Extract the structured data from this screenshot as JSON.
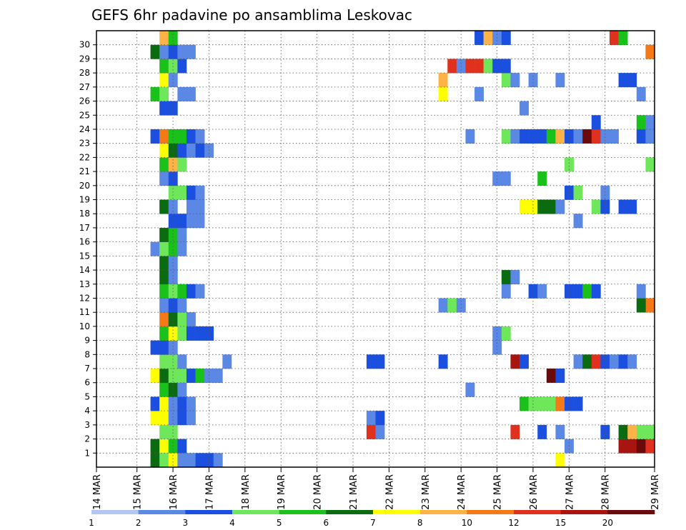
{
  "chart_data": {
    "type": "heatmap",
    "title": "GEFS 6hr padavine po ansamblima Leskovac",
    "x_tick_labels": [
      "14 MAR",
      "15 MAR",
      "16 MAR",
      "17 MAR",
      "18 MAR",
      "19 MAR",
      "20 MAR",
      "21 MAR",
      "22 MAR",
      "23 MAR",
      "24 MAR",
      "25 MAR",
      "26 MAR",
      "27 MAR",
      "28 MAR",
      "29 MAR"
    ],
    "y_tick_labels": [
      "1",
      "2",
      "3",
      "4",
      "5",
      "6",
      "7",
      "8",
      "9",
      "10",
      "11",
      "12",
      "13",
      "14",
      "15",
      "16",
      "17",
      "18",
      "19",
      "20",
      "21",
      "22",
      "23",
      "24",
      "25",
      "26",
      "27",
      "28",
      "29",
      "30"
    ],
    "y_range": [
      0,
      30
    ],
    "x_range_steps": [
      0,
      60
    ],
    "steps_per_day": 4,
    "grid": true,
    "colorbar": {
      "position": "bottom",
      "labels": [
        "1",
        "2",
        "3",
        "4",
        "5",
        "6",
        "7",
        "8",
        "10",
        "12",
        "15",
        "20"
      ],
      "colors": [
        "#b3c6f2",
        "#5b87e5",
        "#1b4fe0",
        "#6ee85a",
        "#19c11a",
        "#0a6b10",
        "#ffff00",
        "#ffb347",
        "#f57a17",
        "#e0301e",
        "#a8140f",
        "#6b0a0a"
      ]
    },
    "cells": [
      [
        6,
        1,
        5
      ],
      [
        7,
        1,
        6
      ],
      [
        8,
        1,
        4
      ],
      [
        9,
        1,
        2
      ],
      [
        7,
        2,
        3
      ],
      [
        8,
        2,
        3
      ],
      [
        6,
        3,
        6
      ],
      [
        7,
        3,
        6
      ],
      [
        8,
        3,
        1
      ],
      [
        9,
        3,
        2
      ],
      [
        10,
        3,
        1
      ],
      [
        6,
        4,
        2
      ],
      [
        7,
        4,
        6
      ],
      [
        8,
        4,
        1
      ],
      [
        9,
        4,
        2
      ],
      [
        10,
        4,
        1
      ],
      [
        7,
        5,
        4
      ],
      [
        8,
        5,
        5
      ],
      [
        9,
        5,
        1
      ],
      [
        6,
        6,
        6
      ],
      [
        7,
        6,
        5
      ],
      [
        8,
        6,
        3
      ],
      [
        9,
        6,
        3
      ],
      [
        10,
        6,
        2
      ],
      [
        11,
        6,
        4
      ],
      [
        12,
        6,
        1
      ],
      [
        13,
        6,
        1
      ],
      [
        7,
        7,
        3
      ],
      [
        8,
        7,
        3
      ],
      [
        9,
        7,
        1
      ],
      [
        14,
        7,
        1
      ],
      [
        6,
        8,
        2
      ],
      [
        7,
        8,
        2
      ],
      [
        8,
        8,
        1
      ],
      [
        7,
        9,
        4
      ],
      [
        8,
        9,
        6
      ],
      [
        9,
        9,
        3
      ],
      [
        10,
        9,
        2
      ],
      [
        11,
        9,
        2
      ],
      [
        12,
        9,
        2
      ],
      [
        7,
        10,
        8
      ],
      [
        8,
        10,
        5
      ],
      [
        9,
        10,
        3
      ],
      [
        10,
        10,
        1
      ],
      [
        7,
        11,
        1
      ],
      [
        8,
        11,
        2
      ],
      [
        9,
        11,
        1
      ],
      [
        7,
        12,
        4
      ],
      [
        8,
        12,
        3
      ],
      [
        9,
        12,
        4
      ],
      [
        10,
        12,
        2
      ],
      [
        11,
        12,
        1
      ],
      [
        7,
        13,
        5
      ],
      [
        8,
        13,
        1
      ],
      [
        7,
        14,
        5
      ],
      [
        8,
        14,
        1
      ],
      [
        6,
        15,
        1
      ],
      [
        7,
        15,
        3
      ],
      [
        8,
        15,
        4
      ],
      [
        9,
        15,
        1
      ],
      [
        7,
        16,
        5
      ],
      [
        8,
        16,
        4
      ],
      [
        9,
        16,
        1
      ],
      [
        8,
        17,
        2
      ],
      [
        9,
        17,
        2
      ],
      [
        10,
        17,
        1
      ],
      [
        11,
        17,
        1
      ],
      [
        7,
        18,
        5
      ],
      [
        8,
        18,
        1
      ],
      [
        10,
        18,
        1
      ],
      [
        11,
        18,
        1
      ],
      [
        8,
        19,
        3
      ],
      [
        9,
        19,
        3
      ],
      [
        10,
        19,
        2
      ],
      [
        11,
        19,
        1
      ],
      [
        7,
        20,
        1
      ],
      [
        8,
        20,
        2
      ],
      [
        7,
        21,
        4
      ],
      [
        8,
        21,
        7
      ],
      [
        9,
        21,
        3
      ],
      [
        7,
        22,
        6
      ],
      [
        8,
        22,
        5
      ],
      [
        9,
        22,
        2
      ],
      [
        10,
        22,
        1
      ],
      [
        11,
        22,
        2
      ],
      [
        12,
        22,
        1
      ],
      [
        6,
        23,
        2
      ],
      [
        7,
        23,
        8
      ],
      [
        8,
        23,
        4
      ],
      [
        9,
        23,
        4
      ],
      [
        10,
        23,
        2
      ],
      [
        11,
        23,
        1
      ],
      [
        7,
        25,
        2
      ],
      [
        8,
        25,
        2
      ],
      [
        6,
        26,
        4
      ],
      [
        7,
        26,
        3
      ],
      [
        9,
        26,
        1
      ],
      [
        10,
        26,
        1
      ],
      [
        7,
        27,
        6
      ],
      [
        8,
        27,
        1
      ],
      [
        7,
        28,
        4
      ],
      [
        8,
        28,
        3
      ],
      [
        9,
        28,
        2
      ],
      [
        6,
        29,
        5
      ],
      [
        7,
        29,
        1
      ],
      [
        8,
        29,
        2
      ],
      [
        9,
        29,
        1
      ],
      [
        10,
        29,
        1
      ],
      [
        7,
        30,
        7
      ],
      [
        8,
        30,
        4
      ],
      [
        6,
        0,
        5
      ],
      [
        7,
        0,
        3
      ],
      [
        8,
        0,
        6
      ],
      [
        9,
        0,
        1
      ],
      [
        10,
        0,
        1
      ],
      [
        11,
        0,
        2
      ],
      [
        12,
        0,
        2
      ],
      [
        13,
        0,
        1
      ],
      [
        30,
        2,
        9
      ],
      [
        31,
        2,
        1
      ],
      [
        30,
        3,
        1
      ],
      [
        31,
        3,
        2
      ],
      [
        30,
        7,
        2
      ],
      [
        31,
        7,
        2
      ],
      [
        38,
        7,
        2
      ],
      [
        38,
        11,
        1
      ],
      [
        39,
        11,
        3
      ],
      [
        40,
        11,
        1
      ],
      [
        38,
        26,
        6
      ],
      [
        38,
        27,
        7
      ],
      [
        39,
        28,
        9
      ],
      [
        40,
        28,
        1
      ],
      [
        41,
        28,
        9
      ],
      [
        42,
        28,
        9
      ],
      [
        43,
        28,
        3
      ],
      [
        44,
        28,
        2
      ],
      [
        41,
        5,
        1
      ],
      [
        41,
        23,
        1
      ],
      [
        42,
        26,
        1
      ],
      [
        42,
        30,
        2
      ],
      [
        43,
        30,
        7
      ],
      [
        44,
        30,
        1
      ],
      [
        45,
        30,
        2
      ],
      [
        44,
        9,
        1
      ],
      [
        44,
        8,
        1
      ],
      [
        44,
        20,
        1
      ],
      [
        45,
        20,
        1
      ],
      [
        45,
        9,
        3
      ],
      [
        45,
        12,
        1
      ],
      [
        45,
        13,
        5
      ],
      [
        46,
        13,
        1
      ],
      [
        45,
        23,
        3
      ],
      [
        46,
        23,
        1
      ],
      [
        45,
        27,
        3
      ],
      [
        46,
        27,
        1
      ],
      [
        45,
        28,
        2
      ],
      [
        46,
        2,
        9
      ],
      [
        46,
        7,
        10
      ],
      [
        47,
        7,
        2
      ],
      [
        47,
        4,
        4
      ],
      [
        48,
        4,
        3
      ],
      [
        49,
        4,
        3
      ],
      [
        50,
        4,
        3
      ],
      [
        51,
        4,
        8
      ],
      [
        52,
        4,
        2
      ],
      [
        53,
        4,
        2
      ],
      [
        47,
        18,
        6
      ],
      [
        48,
        18,
        6
      ],
      [
        49,
        18,
        5
      ],
      [
        50,
        18,
        5
      ],
      [
        51,
        18,
        1
      ],
      [
        47,
        23,
        2
      ],
      [
        48,
        23,
        2
      ],
      [
        49,
        23,
        2
      ],
      [
        50,
        23,
        4
      ],
      [
        51,
        23,
        7
      ],
      [
        52,
        23,
        2
      ],
      [
        53,
        23,
        1
      ],
      [
        47,
        25,
        1
      ],
      [
        48,
        12,
        2
      ],
      [
        49,
        12,
        1
      ],
      [
        49,
        2,
        2
      ],
      [
        48,
        27,
        1
      ],
      [
        49,
        20,
        4
      ],
      [
        51,
        0,
        6
      ],
      [
        51,
        2,
        1
      ],
      [
        51,
        27,
        1
      ],
      [
        50,
        6,
        11
      ],
      [
        51,
        6,
        2
      ],
      [
        52,
        1,
        1
      ],
      [
        52,
        19,
        2
      ],
      [
        53,
        19,
        3
      ],
      [
        52,
        21,
        3
      ],
      [
        52,
        12,
        2
      ],
      [
        53,
        12,
        2
      ],
      [
        54,
        12,
        4
      ],
      [
        55,
        12,
        2
      ],
      [
        53,
        17,
        1
      ],
      [
        53,
        7,
        1
      ],
      [
        54,
        7,
        5
      ],
      [
        55,
        7,
        9
      ],
      [
        56,
        7,
        2
      ],
      [
        57,
        7,
        1
      ],
      [
        58,
        7,
        2
      ],
      [
        59,
        7,
        1
      ],
      [
        54,
        23,
        11
      ],
      [
        55,
        23,
        9
      ],
      [
        56,
        23,
        1
      ],
      [
        57,
        23,
        1
      ],
      [
        55,
        24,
        2
      ],
      [
        55,
        18,
        3
      ],
      [
        56,
        18,
        2
      ],
      [
        56,
        2,
        2
      ],
      [
        56,
        19,
        1
      ],
      [
        57,
        30,
        9
      ],
      [
        58,
        30,
        4
      ],
      [
        58,
        1,
        10
      ],
      [
        59,
        1,
        10
      ],
      [
        60,
        1,
        11
      ],
      [
        61,
        1,
        9
      ],
      [
        58,
        2,
        5
      ],
      [
        59,
        2,
        7
      ],
      [
        60,
        2,
        3
      ],
      [
        61,
        2,
        3
      ],
      [
        58,
        18,
        2
      ],
      [
        59,
        18,
        2
      ],
      [
        58,
        27,
        2
      ],
      [
        59,
        27,
        2
      ],
      [
        60,
        26,
        1
      ],
      [
        60,
        23,
        2
      ],
      [
        61,
        23,
        1
      ],
      [
        60,
        24,
        4
      ],
      [
        61,
        24,
        1
      ],
      [
        61,
        11,
        8
      ],
      [
        60,
        11,
        5
      ],
      [
        61,
        21,
        3
      ],
      [
        61,
        29,
        8
      ],
      [
        60,
        12,
        1
      ]
    ]
  }
}
